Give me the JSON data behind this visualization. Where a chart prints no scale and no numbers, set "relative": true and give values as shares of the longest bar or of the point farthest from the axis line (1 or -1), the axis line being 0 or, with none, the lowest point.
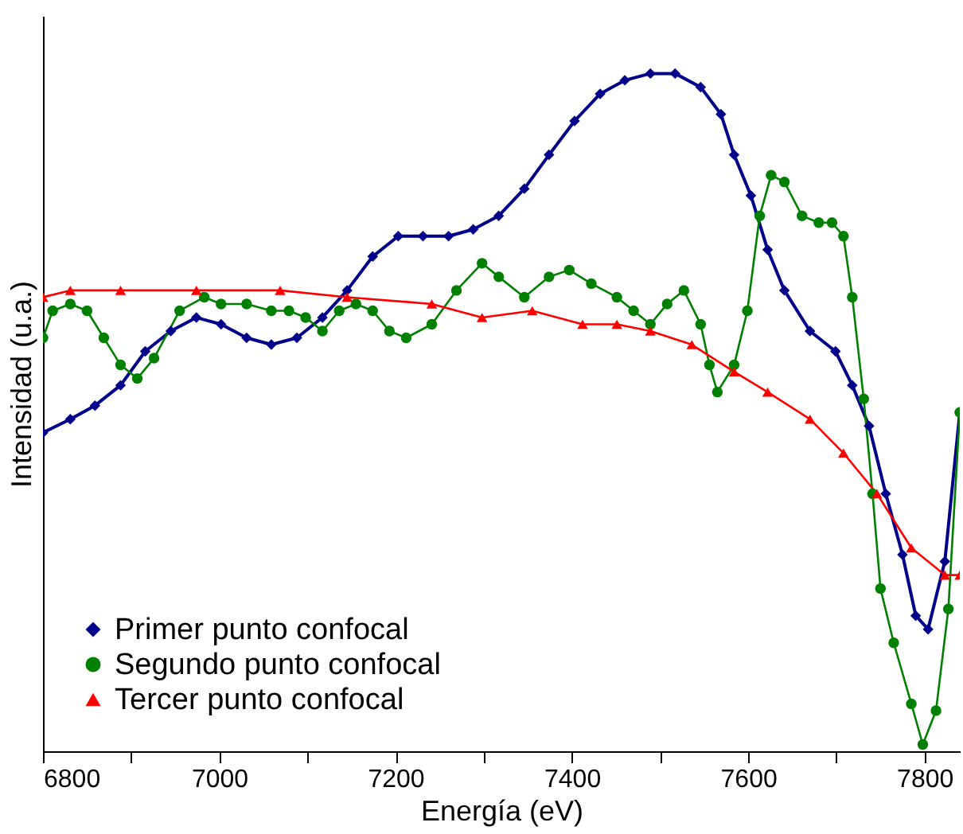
{
  "chart_data": {
    "type": "line",
    "xlabel": "Energía (eV)",
    "ylabel": "Intensidad (u.a.)",
    "relative": true,
    "xlim": [
      6800,
      7840
    ],
    "xticks": [
      6800,
      {
        "value": 6900,
        "label": null
      },
      7000,
      {
        "value": 7100,
        "label": null
      },
      7200,
      {
        "value": 7300,
        "label": null
      },
      7400,
      {
        "value": 7500,
        "label": null
      },
      7600,
      {
        "value": 7700,
        "label": null
      },
      7800
    ],
    "grid": false,
    "legend": "bottom left",
    "series": [
      {
        "name": "Primer punto confocal",
        "color": "#00008b",
        "marker": "diamond",
        "line_style": "solid",
        "x": [
          6800,
          6831,
          6859,
          6888,
          6916,
          6945,
          6974,
          7002,
          7031,
          7059,
          7088,
          7117,
          7145,
          7174,
          7203,
          7231,
          7260,
          7288,
          7317,
          7346,
          7374,
          7403,
          7432,
          7460,
          7489,
          7517,
          7546,
          7569,
          7584,
          7603,
          7622,
          7641,
          7670,
          7699,
          7718,
          7737,
          7756,
          7775,
          7790,
          7804,
          7823,
          7840
        ],
        "values": [
          0.47,
          0.49,
          0.51,
          0.54,
          0.59,
          0.62,
          0.64,
          0.63,
          0.61,
          0.6,
          0.61,
          0.64,
          0.68,
          0.73,
          0.76,
          0.76,
          0.76,
          0.77,
          0.79,
          0.83,
          0.88,
          0.93,
          0.97,
          0.99,
          1.0,
          1.0,
          0.98,
          0.94,
          0.88,
          0.82,
          0.74,
          0.68,
          0.62,
          0.59,
          0.54,
          0.48,
          0.38,
          0.29,
          0.2,
          0.18,
          0.28,
          0.5
        ]
      },
      {
        "name": "Segundo punto confocal",
        "color": "#008000",
        "marker": "circle",
        "line_style": "solid",
        "x": [
          6800,
          6811,
          6831,
          6850,
          6869,
          6888,
          6907,
          6926,
          6955,
          6983,
          7002,
          7031,
          7059,
          7079,
          7098,
          7117,
          7136,
          7155,
          7174,
          7193,
          7212,
          7241,
          7269,
          7298,
          7317,
          7346,
          7374,
          7397,
          7422,
          7451,
          7470,
          7489,
          7508,
          7527,
          7546,
          7556,
          7565,
          7584,
          7599,
          7613,
          7626,
          7641,
          7661,
          7680,
          7695,
          7708,
          7718,
          7731,
          7741,
          7750,
          7765,
          7785,
          7798,
          7813,
          7827,
          7840
        ],
        "values": [
          0.61,
          0.65,
          0.66,
          0.65,
          0.61,
          0.57,
          0.55,
          0.58,
          0.65,
          0.67,
          0.66,
          0.66,
          0.65,
          0.65,
          0.64,
          0.62,
          0.65,
          0.66,
          0.65,
          0.62,
          0.61,
          0.63,
          0.68,
          0.72,
          0.7,
          0.67,
          0.7,
          0.71,
          0.69,
          0.67,
          0.65,
          0.63,
          0.66,
          0.68,
          0.63,
          0.57,
          0.53,
          0.57,
          0.65,
          0.79,
          0.85,
          0.84,
          0.79,
          0.78,
          0.78,
          0.76,
          0.67,
          0.52,
          0.38,
          0.24,
          0.16,
          0.07,
          0.01,
          0.06,
          0.21,
          0.5
        ]
      },
      {
        "name": "Tercer punto confocal",
        "color": "#ff0000",
        "marker": "triangle",
        "line_style": "solid",
        "x": [
          6800,
          6831,
          6888,
          6974,
          7069,
          7145,
          7241,
          7298,
          7355,
          7412,
          7451,
          7489,
          7536,
          7584,
          7622,
          7670,
          7708,
          7746,
          7785,
          7823,
          7840
        ],
        "values": [
          0.67,
          0.68,
          0.68,
          0.68,
          0.68,
          0.67,
          0.66,
          0.64,
          0.65,
          0.63,
          0.63,
          0.62,
          0.6,
          0.56,
          0.53,
          0.49,
          0.44,
          0.38,
          0.3,
          0.26,
          0.26
        ]
      }
    ]
  }
}
